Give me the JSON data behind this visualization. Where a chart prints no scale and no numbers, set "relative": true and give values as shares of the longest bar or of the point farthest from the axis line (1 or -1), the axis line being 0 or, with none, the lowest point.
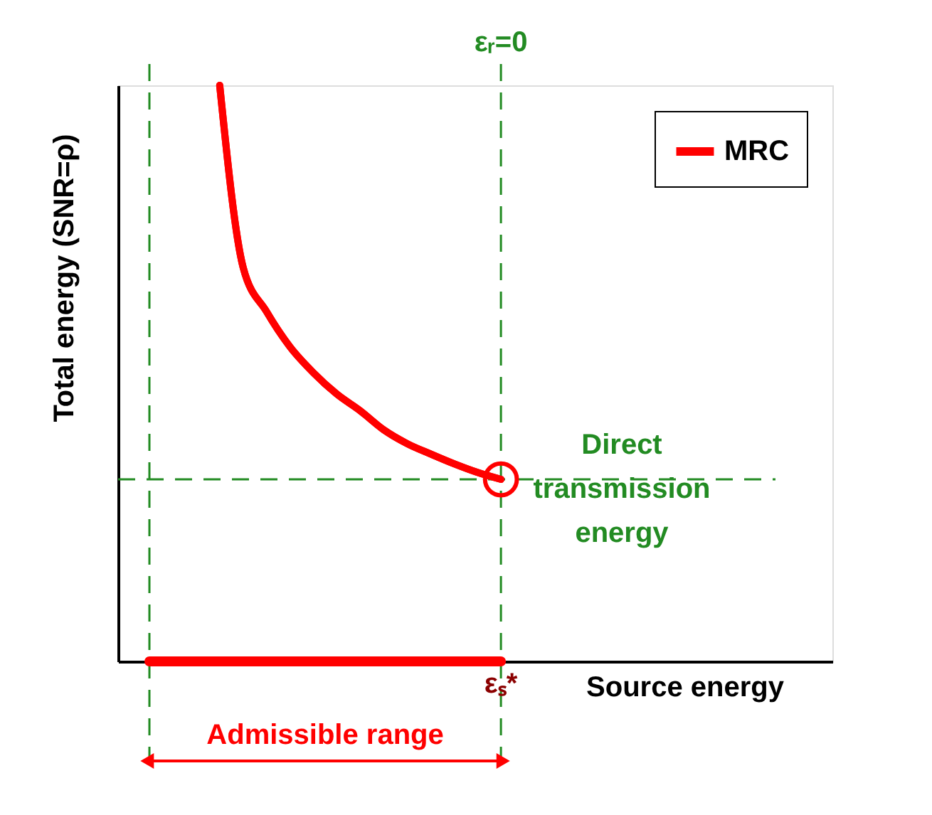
{
  "chart_data": {
    "type": "line",
    "relative": true,
    "xlabel": "Source energy",
    "ylabel": "Total energy (SNR=ρ)",
    "categories": [
      null,
      null,
      null,
      null,
      null,
      null,
      null,
      null,
      null,
      null,
      null,
      null,
      null,
      null,
      null,
      null,
      null,
      null,
      null,
      null,
      null,
      null,
      null,
      null,
      null,
      null,
      null,
      null,
      null,
      null
    ],
    "series": [
      {
        "name": "MRC",
        "color": "#ff0000",
        "values": [
          null,
          null,
          null,
          1,
          0.684,
          0.607,
          0.546,
          0.501,
          0.464,
          0.435,
          0.402,
          0.378,
          0.36,
          0.343,
          0.328,
          0.316,
          null,
          null,
          null,
          null,
          null,
          null,
          null,
          null,
          null,
          null,
          null,
          null,
          null,
          null
        ]
      }
    ],
    "tick_labels": false,
    "legend": "top right",
    "grid": false,
    "line_style": "solid",
    "ref_lines": [
      {
        "axis": "y",
        "value": 0.316,
        "label": "Direct transmission energy",
        "color": "#228b22",
        "line_style": "dashed"
      }
    ],
    "annotations": [
      "εᵣ=0",
      "εₛ*",
      "Admissible range"
    ]
  }
}
